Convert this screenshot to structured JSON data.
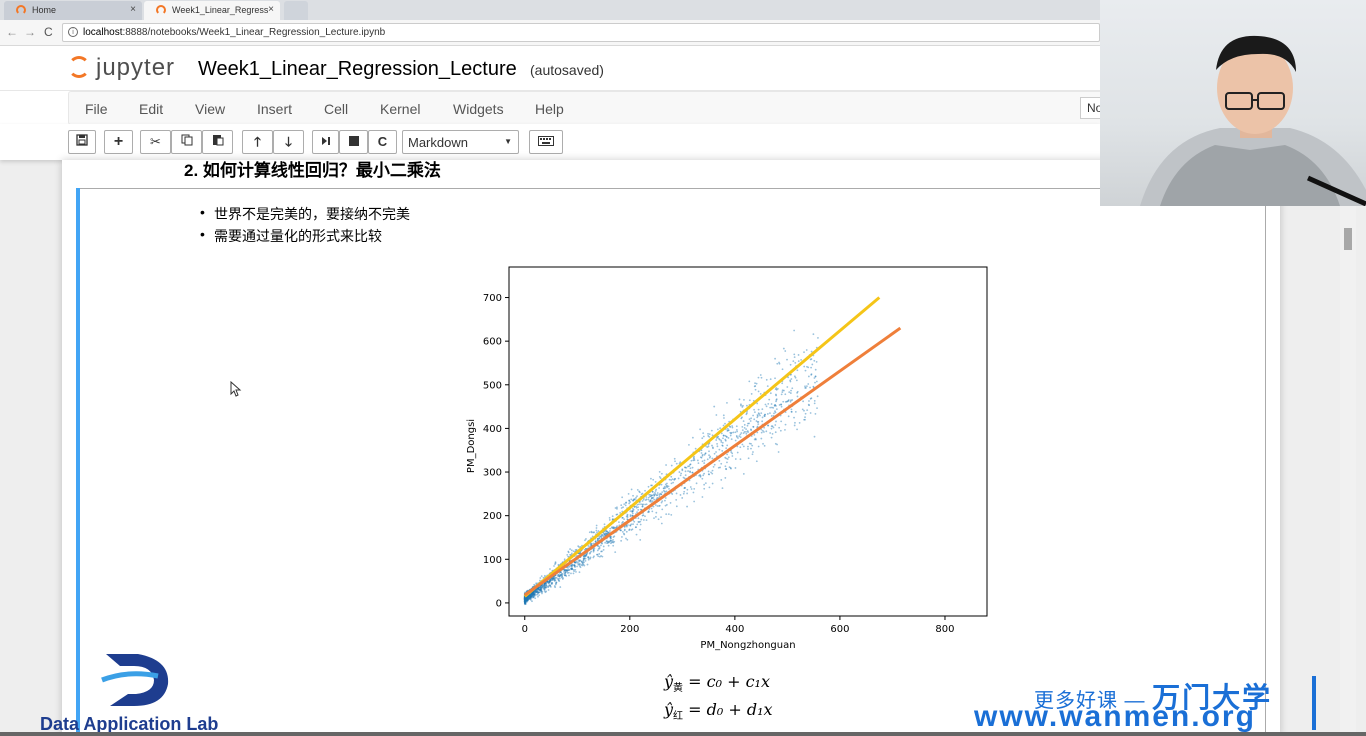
{
  "browser": {
    "tabs": [
      {
        "label": "Home",
        "close": "×"
      },
      {
        "label": "Week1_Linear_Regress",
        "close": "×"
      }
    ],
    "url_host": "localhost",
    "url_rest": ":8888/notebooks/Week1_Linear_Regression_Lecture.ipynb"
  },
  "jupyter": {
    "logo_text": "jupyter",
    "notebook_title": "Week1_Linear_Regression_Lecture",
    "save_status": "(autosaved)",
    "menu": [
      "File",
      "Edit",
      "View",
      "Insert",
      "Cell",
      "Kernel",
      "Widgets",
      "Help"
    ],
    "kernel_indicator": "No",
    "cell_type": "Markdown"
  },
  "cell": {
    "heading": "2. 如何计算线性回归？最小二乘法",
    "bullets": [
      "世界不是完美的，要接纳不完美",
      "需要通过量化的形式来比较"
    ],
    "eq1": {
      "lhs": "ŷ",
      "sub": "黄",
      "rhs": "= c₀ + c₁x"
    },
    "eq2": {
      "lhs": "ŷ",
      "sub": "红",
      "rhs": "= d₀ + d₁x"
    }
  },
  "chart_data": {
    "type": "scatter",
    "xlabel": "PM_Nongzhonguan",
    "ylabel": "PM_Dongsi",
    "xlim": [
      -30,
      880
    ],
    "ylim": [
      -30,
      770
    ],
    "xticks": [
      0,
      200,
      400,
      600,
      800
    ],
    "yticks": [
      0,
      100,
      200,
      300,
      400,
      500,
      600,
      700
    ],
    "grid": false,
    "scatter_color": "#1f77b4",
    "series": [
      {
        "kind": "line",
        "color": "#f5c518",
        "x": [
          0,
          675
        ],
        "y": [
          15,
          700
        ]
      },
      {
        "kind": "line",
        "color": "#ef7f3a",
        "x": [
          0,
          715
        ],
        "y": [
          18,
          630
        ]
      }
    ]
  },
  "watermark": {
    "org_logo_text": "Data Application Lab",
    "promo_small": "更多好课 —",
    "promo_big": "万门大学",
    "site": "www.wanmen.org"
  },
  "colors": {
    "accent_cell": "#42a5f5",
    "jupyter_orange": "#f37726",
    "wanmen_blue": "#1a6fd6"
  }
}
